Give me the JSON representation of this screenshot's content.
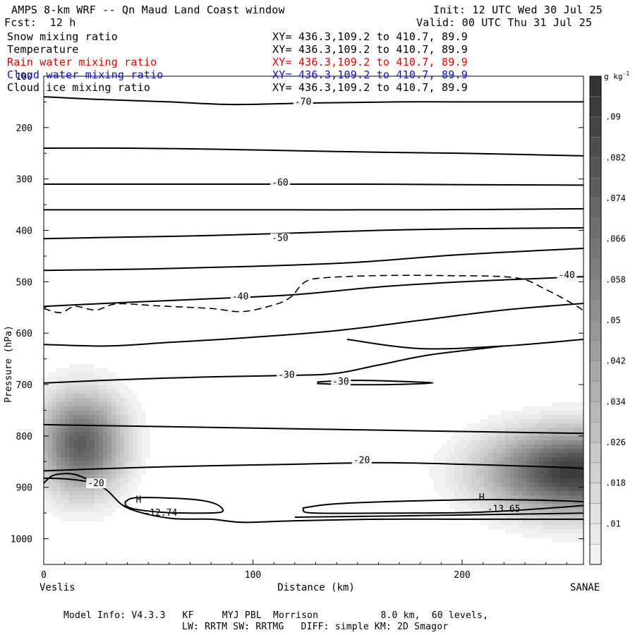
{
  "header": {
    "title": "AMPS 8-km WRF -- Qn Maud Land Coast window",
    "init": "Init: 12 UTC Wed 30 Jul 25",
    "fcst": "Fcst:  12 h",
    "valid": "Valid: 00 UTC Thu 31 Jul 25"
  },
  "fields": [
    {
      "name": "Snow mixing ratio",
      "xy": "XY= 436.3,109.2 to 410.7, 89.9",
      "color": "#000000"
    },
    {
      "name": "Temperature",
      "xy": "XY= 436.3,109.2 to 410.7, 89.9",
      "color": "#000000"
    },
    {
      "name": "Rain water mixing ratio",
      "xy": "XY= 436.3,109.2 to 410.7, 89.9",
      "color": "#e00000"
    },
    {
      "name": "Cloud water mixing ratio",
      "xy": "XY= 436.3,109.2 to 410.7, 89.9",
      "color": "#1010d0"
    },
    {
      "name": "Cloud ice mixing ratio",
      "xy": "XY= 436.3,109.2 to 410.7, 89.9",
      "color": "#000000"
    }
  ],
  "footer": {
    "line1": "Model Info: V4.3.3   KF     MYJ PBL  Morrison           8.0 km,  60 levels,",
    "line2": "LW: RRTM SW: RRTMG   DIFF: simple KM: 2D Smagor"
  },
  "chart_data": {
    "type": "contour",
    "xlabel": "Distance (km)",
    "ylabel": "Pressure (hPa)",
    "xlim": [
      0,
      258
    ],
    "ylim": [
      100,
      1050
    ],
    "y_ticks": [
      100,
      200,
      300,
      400,
      500,
      600,
      700,
      800,
      900,
      1000
    ],
    "x_ticks": [
      0,
      100,
      200
    ],
    "x_endpoints": {
      "left": "Veslis",
      "right": "SANAE"
    },
    "colorbar": {
      "units": "g kg-1",
      "tick_labels": [
        ".01",
        ".018",
        ".026",
        ".034",
        ".042",
        ".05",
        ".058",
        ".066",
        ".074",
        ".082",
        ".09"
      ],
      "levels": [
        0.006,
        0.01,
        0.014,
        0.018,
        0.022,
        0.026,
        0.03,
        0.034,
        0.038,
        0.042,
        0.046,
        0.05,
        0.054,
        0.058,
        0.062,
        0.066,
        0.07,
        0.074,
        0.078,
        0.082,
        0.086,
        0.09,
        0.094,
        0.098
      ]
    },
    "snow_blobs": [
      {
        "x_km": 18,
        "p_hpa": 815,
        "sx_km": 20,
        "sp_hpa": 95,
        "peak": 0.08
      },
      {
        "x_km": 255,
        "p_hpa": 870,
        "sx_km": 42,
        "sp_hpa": 80,
        "peak": 0.098
      }
    ],
    "temperature_contours": [
      {
        "label": "-70",
        "label_pos": [
          120,
          153
        ],
        "points": [
          [
            0,
            140
          ],
          [
            25,
            145
          ],
          [
            60,
            150
          ],
          [
            90,
            155
          ],
          [
            130,
            152
          ],
          [
            170,
            150
          ],
          [
            210,
            150
          ],
          [
            258,
            150
          ]
        ]
      },
      {
        "points": [
          [
            0,
            240
          ],
          [
            40,
            240
          ],
          [
            80,
            242
          ],
          [
            120,
            245
          ],
          [
            160,
            248
          ],
          [
            200,
            250
          ],
          [
            258,
            255
          ]
        ]
      },
      {
        "label": "-60",
        "label_pos": [
          109,
          310
        ],
        "points": [
          [
            0,
            310
          ],
          [
            50,
            310
          ],
          [
            100,
            310
          ],
          [
            150,
            310
          ],
          [
            200,
            311
          ],
          [
            258,
            312
          ]
        ]
      },
      {
        "points": [
          [
            0,
            360
          ],
          [
            60,
            360
          ],
          [
            120,
            360
          ],
          [
            180,
            360
          ],
          [
            258,
            358
          ]
        ]
      },
      {
        "label": "-50",
        "label_pos": [
          109,
          418
        ],
        "points": [
          [
            0,
            416
          ],
          [
            40,
            413
          ],
          [
            80,
            410
          ],
          [
            120,
            405
          ],
          [
            160,
            400
          ],
          [
            200,
            397
          ],
          [
            258,
            395
          ]
        ]
      },
      {
        "points": [
          [
            0,
            478
          ],
          [
            50,
            475
          ],
          [
            100,
            470
          ],
          [
            150,
            462
          ],
          [
            200,
            447
          ],
          [
            258,
            435
          ]
        ]
      },
      {
        "label": "-40",
        "label_pos": [
          90,
          532
        ],
        "points": [
          [
            0,
            548
          ],
          [
            40,
            540
          ],
          [
            80,
            533
          ],
          [
            120,
            525
          ],
          [
            160,
            510
          ],
          [
            200,
            500
          ],
          [
            240,
            493
          ],
          [
            258,
            490
          ]
        ]
      },
      {
        "points": [
          [
            0,
            622
          ],
          [
            30,
            625
          ],
          [
            60,
            618
          ],
          [
            100,
            608
          ],
          [
            140,
            595
          ],
          [
            180,
            575
          ],
          [
            220,
            555
          ],
          [
            258,
            542
          ]
        ]
      },
      {
        "points": [
          [
            145,
            612
          ],
          [
            180,
            630
          ],
          [
            220,
            625
          ],
          [
            258,
            612
          ]
        ]
      },
      {
        "label": "-30",
        "label_pos": [
          112,
          684
        ],
        "points": [
          [
            0,
            697
          ],
          [
            40,
            690
          ],
          [
            80,
            685
          ],
          [
            120,
            682
          ],
          [
            140,
            678
          ],
          [
            160,
            662
          ],
          [
            185,
            642
          ],
          [
            220,
            625
          ]
        ]
      },
      {
        "label": "-30",
        "label_pos": [
          138,
          697
        ],
        "closed": true,
        "points": [
          [
            131,
            695
          ],
          [
            145,
            692
          ],
          [
            165,
            693
          ],
          [
            186,
            697
          ],
          [
            165,
            700
          ],
          [
            145,
            700
          ],
          [
            131,
            698
          ]
        ]
      },
      {
        "points": [
          [
            0,
            778
          ],
          [
            60,
            782
          ],
          [
            120,
            786
          ],
          [
            180,
            790
          ],
          [
            258,
            795
          ]
        ]
      },
      {
        "label": "-20",
        "label_pos": [
          148,
          850
        ],
        "points": [
          [
            0,
            868
          ],
          [
            40,
            862
          ],
          [
            80,
            858
          ],
          [
            120,
            855
          ],
          [
            160,
            852
          ],
          [
            200,
            855
          ],
          [
            240,
            860
          ],
          [
            258,
            863
          ]
        ]
      },
      {
        "label": "-20",
        "label_pos": [
          21,
          895
        ],
        "points": [
          [
            0,
            882
          ],
          [
            12,
            884
          ],
          [
            22,
            890
          ],
          [
            30,
            905
          ],
          [
            40,
            940
          ],
          [
            60,
            960
          ],
          [
            80,
            962
          ],
          [
            95,
            968
          ],
          [
            120,
            965
          ],
          [
            160,
            962
          ],
          [
            200,
            962
          ],
          [
            258,
            962
          ]
        ]
      },
      {
        "closed": true,
        "points": [
          [
            39,
            928
          ],
          [
            45,
            920
          ],
          [
            70,
            923
          ],
          [
            82,
            932
          ],
          [
            85,
            948
          ],
          [
            70,
            950
          ],
          [
            55,
            948
          ],
          [
            43,
            942
          ],
          [
            39,
            935
          ]
        ]
      },
      {
        "closed": true,
        "points": [
          [
            124,
            940
          ],
          [
            140,
            932
          ],
          [
            180,
            926
          ],
          [
            220,
            924
          ],
          [
            258,
            928
          ],
          [
            258,
            935
          ],
          [
            210,
            948
          ],
          [
            170,
            950
          ],
          [
            130,
            950
          ],
          [
            124,
            945
          ]
        ]
      },
      {
        "points": [
          [
            120,
            958
          ],
          [
            180,
            955
          ],
          [
            258,
            950
          ]
        ]
      },
      {
        "points": [
          [
            0,
            892
          ],
          [
            5,
            876
          ],
          [
            15,
            875
          ],
          [
            25,
            893
          ]
        ]
      }
    ],
    "cloud_ice_contour": {
      "label": "-40",
      "label_pos": [
        246,
        490
      ],
      "dashed": true,
      "points": [
        [
          0,
          552
        ],
        [
          8,
          560
        ],
        [
          15,
          548
        ],
        [
          25,
          555
        ],
        [
          35,
          543
        ],
        [
          55,
          547
        ],
        [
          80,
          552
        ],
        [
          95,
          558
        ],
        [
          110,
          545
        ],
        [
          118,
          530
        ],
        [
          125,
          500
        ],
        [
          135,
          492
        ],
        [
          160,
          488
        ],
        [
          190,
          488
        ],
        [
          225,
          492
        ],
        [
          240,
          515
        ],
        [
          255,
          548
        ],
        [
          258,
          558
        ]
      ]
    },
    "annotations": [
      {
        "text": "H",
        "x": 44,
        "p": 930
      },
      {
        "text": "-12.74",
        "x": 48,
        "p": 955
      },
      {
        "text": "H",
        "x": 208,
        "p": 925
      },
      {
        "text": "-13.65",
        "x": 212,
        "p": 948
      }
    ]
  }
}
